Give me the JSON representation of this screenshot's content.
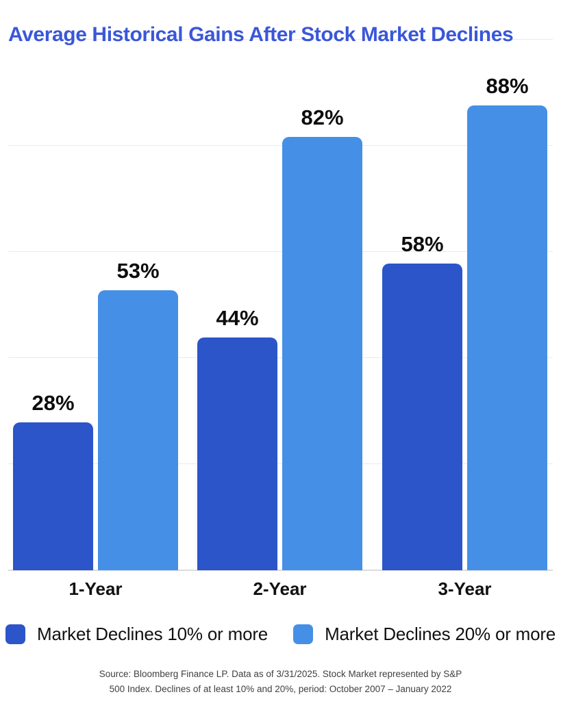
{
  "title": "Average Historical Gains After Stock Market Declines",
  "colors": {
    "title": "#3A57D9",
    "series1": "#2B55C8",
    "series2": "#4590E6",
    "gridline": "#EAEAEA",
    "baseline": "#DCDCDC",
    "data_label": "#0D0D0D",
    "axis_label": "#111111",
    "source_text": "#3F3F3F"
  },
  "chart_data": {
    "type": "bar",
    "title": "Average Historical Gains After Stock Market Declines",
    "categories": [
      "1-Year",
      "2-Year",
      "3-Year"
    ],
    "series": [
      {
        "name": "Market Declines 10% or more",
        "color": "#2B55C8",
        "values": [
          28,
          44,
          58
        ]
      },
      {
        "name": "Market Declines 20% or more",
        "color": "#4590E6",
        "values": [
          53,
          82,
          88
        ]
      }
    ],
    "unit": "%",
    "data_labels": [
      "28%",
      "53%",
      "44%",
      "82%",
      "58%",
      "88%"
    ],
    "ylim": [
      0,
      100
    ],
    "gridlines_pct": [
      20,
      40,
      60,
      80,
      100
    ],
    "grid": "horizontal",
    "y_axis_labels_visible": false,
    "legend_position": "bottom-left"
  },
  "legend": {
    "items": [
      {
        "label": "Market Declines 10% or more",
        "color": "#2B55C8"
      },
      {
        "label": "Market Declines 20% or more",
        "color": "#4590E6"
      }
    ]
  },
  "source": {
    "line1": "Source: Bloomberg Finance LP. Data as of 3/31/2025. Stock Market represented by S&P",
    "line2": "500 Index. Declines of at least 10% and 20%, period: October 2007 – January 2022"
  }
}
